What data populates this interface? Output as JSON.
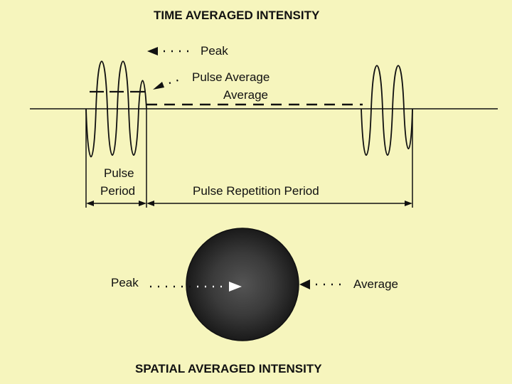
{
  "top_title": "TIME AVERAGED INTENSITY",
  "bottom_title": "SPATIAL AVERAGED INTENSITY",
  "time_labels": {
    "peak": "Peak",
    "pulse_average": "Pulse Average",
    "average": "Average",
    "pulse": "Pulse",
    "period": "Period",
    "pulse_repetition_period": "Pulse Repetition Period"
  },
  "spatial_labels": {
    "peak": "Peak",
    "average": "Average"
  },
  "colors": {
    "background": "#f6f5bd",
    "ink": "#111111",
    "faint_text": "#e7e3ae"
  }
}
